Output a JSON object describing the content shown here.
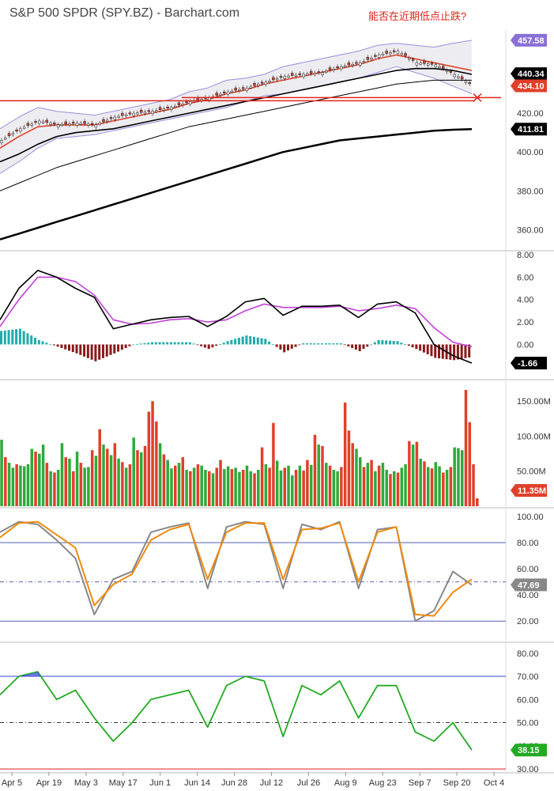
{
  "title": "S&P 500 SPDR (SPY.BZ) - Barchart.com",
  "annotation": "能否在近期低点止跌?",
  "colors": {
    "up": "#2eaa3a",
    "down": "#e0402b",
    "sma_black": "#000000",
    "sma_red": "#e0402b",
    "band": "#9b8de0",
    "macd_line": "#000000",
    "macd_signal": "#c040d8",
    "hist_up": "#22aaaa",
    "hist_down": "#8b1a1a",
    "stoch_k": "#888888",
    "stoch_d": "#f08a10",
    "rsi": "#22aa22",
    "rsi_over": "#3344dd",
    "hline_blue": "#5560b0",
    "support": "#e0241b"
  },
  "x_axis": {
    "labels": [
      "Apr 5",
      "Apr 19",
      "May 3",
      "May 17",
      "Jun 1",
      "Jun 14",
      "Jun 28",
      "Jul 12",
      "Jul 26",
      "Aug 9",
      "Aug 23",
      "Sep 7",
      "Sep 20",
      "Oct 4"
    ]
  },
  "chart_data": [
    {
      "type": "line",
      "name": "price",
      "y_ticks": [
        360.0,
        380.0,
        400.0,
        420.0
      ],
      "ylim": [
        350,
        462
      ],
      "price_badges": [
        {
          "label": "457.58",
          "value": 457.58,
          "color": "#8a6fd8"
        },
        {
          "label": "440.34",
          "value": 440.34,
          "color": "#000000"
        },
        {
          "label": "434.10",
          "value": 434.1,
          "color": "#e0402b"
        },
        {
          "label": "411.81",
          "value": 411.81,
          "color": "#000000"
        }
      ],
      "support_level": 426.4,
      "x_index": [
        0,
        5,
        10,
        15,
        20,
        25,
        30,
        35,
        40,
        45,
        50,
        55,
        60,
        65,
        70,
        75,
        80,
        85,
        90,
        95,
        100,
        105,
        110,
        115,
        120,
        125
      ],
      "series": [
        {
          "key": "close",
          "values": [
            406,
            412,
            416,
            414,
            415,
            414,
            418,
            420,
            421,
            423,
            426,
            428,
            431,
            433,
            436,
            439,
            440,
            441,
            444,
            446,
            450,
            452,
            446,
            445,
            440,
            434
          ]
        },
        {
          "key": "sma20",
          "values": [
            402,
            408,
            413,
            414,
            414,
            414,
            416,
            418,
            420,
            422,
            425,
            427,
            430,
            432,
            435,
            437,
            439,
            441,
            443,
            445,
            448,
            450,
            448,
            446,
            444,
            442
          ]
        },
        {
          "key": "sma50",
          "values": [
            395,
            399,
            404,
            408,
            410,
            411,
            412,
            414,
            416,
            418,
            420,
            422,
            424,
            426,
            428,
            430,
            432,
            434,
            436,
            438,
            440,
            442,
            443,
            443,
            442,
            440
          ]
        },
        {
          "key": "sma100",
          "values": [
            380,
            384,
            388,
            392,
            395,
            398,
            401,
            404,
            407,
            410,
            413,
            415,
            417,
            419,
            421,
            423,
            425,
            427,
            429,
            431,
            433,
            435,
            436,
            437,
            437,
            437
          ]
        },
        {
          "key": "sma200",
          "values": [
            355,
            358,
            361,
            364,
            367,
            370,
            373,
            376,
            379,
            382,
            385,
            388,
            391,
            394,
            397,
            400,
            402,
            404,
            406,
            407,
            408,
            409,
            410,
            411,
            411.5,
            411.81
          ]
        },
        {
          "key": "band_upper",
          "values": [
            412,
            418,
            423,
            421,
            420,
            419,
            421,
            423,
            425,
            427,
            431,
            433,
            437,
            438,
            440,
            444,
            446,
            448,
            450,
            452,
            455,
            456,
            455,
            454,
            456,
            457.58
          ]
        },
        {
          "key": "band_lower",
          "values": [
            389,
            395,
            402,
            407,
            408,
            409,
            411,
            413,
            415,
            417,
            419,
            421,
            423,
            426,
            429,
            430,
            432,
            434,
            436,
            438,
            441,
            444,
            441,
            438,
            434,
            430
          ]
        }
      ]
    },
    {
      "type": "line",
      "name": "macd",
      "y_ticks": [
        8.0,
        6.0,
        4.0,
        2.0,
        0.0
      ],
      "ylim": [
        -3,
        8
      ],
      "badge": {
        "label": "-1.66",
        "value": -1.66
      },
      "x_index": [
        0,
        5,
        10,
        15,
        20,
        25,
        30,
        35,
        40,
        45,
        50,
        55,
        60,
        65,
        70,
        75,
        80,
        85,
        90,
        95,
        100,
        105,
        110,
        115,
        120,
        125
      ],
      "series": [
        {
          "key": "macd",
          "values": [
            2.2,
            5.0,
            6.6,
            6.0,
            5.0,
            4.2,
            1.4,
            1.8,
            2.2,
            2.4,
            2.5,
            1.6,
            2.5,
            3.8,
            4.1,
            2.6,
            3.4,
            3.4,
            3.5,
            2.4,
            3.6,
            3.8,
            2.8,
            0.0,
            -1.0,
            -1.66
          ]
        },
        {
          "key": "signal",
          "values": [
            1.6,
            4.0,
            6.0,
            6.0,
            5.6,
            4.4,
            2.2,
            1.8,
            1.9,
            2.2,
            2.3,
            2.0,
            2.2,
            3.0,
            3.6,
            3.3,
            3.3,
            3.3,
            3.4,
            3.0,
            3.2,
            3.5,
            3.2,
            1.5,
            0.2,
            -0.2
          ]
        },
        {
          "key": "histogram",
          "values": [
            1.2,
            1.4,
            0.4,
            -0.2,
            -0.8,
            -1.5,
            -0.8,
            0.0,
            0.2,
            0.2,
            0.2,
            -0.4,
            0.3,
            0.8,
            0.5,
            -0.7,
            0.1,
            0.1,
            0.1,
            -0.6,
            0.4,
            0.3,
            -0.4,
            -1.2,
            -1.4,
            -1.1
          ]
        }
      ]
    },
    {
      "type": "bar",
      "name": "volume",
      "y_tick_labels": [
        "150.00M",
        "100.00M",
        "50.00M"
      ],
      "y_ticks": [
        150,
        100,
        50
      ],
      "ylim": [
        0,
        175
      ],
      "badge": {
        "label": "11.35M",
        "value": 11.35
      },
      "values": [
        95,
        70,
        62,
        55,
        60,
        58,
        57,
        60,
        82,
        78,
        75,
        88,
        62,
        50,
        48,
        52,
        90,
        70,
        68,
        50,
        78,
        62,
        55,
        56,
        80,
        72,
        110,
        88,
        82,
        73,
        90,
        68,
        63,
        55,
        60,
        98,
        80,
        77,
        86,
        135,
        150,
        121,
        90,
        74,
        66,
        54,
        58,
        62,
        70,
        52,
        50,
        55,
        60,
        58,
        52,
        50,
        47,
        55,
        66,
        53,
        57,
        53,
        55,
        49,
        52,
        58,
        50,
        47,
        52,
        84,
        60,
        55,
        119,
        65,
        51,
        55,
        58,
        44,
        52,
        58,
        51,
        66,
        59,
        102,
        88,
        86,
        62,
        58,
        52,
        50,
        56,
        148,
        108,
        90,
        82,
        70,
        56,
        62,
        66,
        50,
        58,
        62,
        52,
        46,
        50,
        48,
        55,
        60,
        93,
        88,
        92,
        68,
        64,
        56,
        54,
        63,
        57,
        48,
        52,
        56,
        84,
        83,
        80,
        166,
        120,
        60,
        11.35
      ],
      "up": [
        1,
        0,
        1,
        1,
        0,
        1,
        1,
        1,
        1,
        0,
        1,
        1,
        0,
        1,
        0,
        1,
        1,
        0,
        1,
        0,
        1,
        0,
        1,
        1,
        0,
        1,
        0,
        1,
        0,
        1,
        0,
        1,
        0,
        1,
        0,
        1,
        0,
        1,
        0,
        0,
        0,
        0,
        1,
        0,
        1,
        1,
        0,
        1,
        0,
        1,
        0,
        1,
        0,
        1,
        1,
        0,
        1,
        0,
        0,
        1,
        1,
        0,
        1,
        1,
        0,
        1,
        1,
        0,
        1,
        0,
        1,
        0,
        0,
        1,
        1,
        0,
        1,
        1,
        0,
        1,
        0,
        0,
        1,
        0,
        1,
        0,
        1,
        0,
        1,
        1,
        0,
        0,
        0,
        0,
        1,
        1,
        0,
        1,
        0,
        1,
        0,
        1,
        1,
        0,
        1,
        0,
        1,
        1,
        0,
        1,
        0,
        1,
        0,
        1,
        0,
        1,
        1,
        0,
        1,
        0,
        1,
        1,
        1,
        0,
        0,
        0,
        0
      ]
    },
    {
      "type": "line",
      "name": "stochastic",
      "y_ticks": [
        100.0,
        80.0,
        60.0,
        40.0,
        20.0
      ],
      "ylim": [
        5,
        103
      ],
      "levels": [
        80,
        20,
        50
      ],
      "badge": {
        "label": "47.69",
        "value": 47.69
      },
      "x_index": [
        0,
        5,
        10,
        15,
        20,
        25,
        30,
        35,
        40,
        45,
        50,
        55,
        60,
        65,
        70,
        75,
        80,
        85,
        90,
        95,
        100,
        105,
        110,
        115,
        120,
        125
      ],
      "series": [
        {
          "key": "k",
          "values": [
            88,
            96,
            94,
            82,
            68,
            25,
            52,
            58,
            88,
            92,
            95,
            45,
            92,
            96,
            94,
            45,
            94,
            90,
            96,
            45,
            90,
            92,
            20,
            28,
            58,
            47.69
          ]
        },
        {
          "key": "d",
          "values": [
            84,
            95,
            96,
            86,
            76,
            32,
            48,
            56,
            82,
            90,
            94,
            52,
            88,
            95,
            95,
            52,
            90,
            91,
            95,
            50,
            88,
            92,
            25,
            24,
            42,
            52
          ]
        }
      ]
    },
    {
      "type": "line",
      "name": "rsi",
      "y_ticks": [
        80.0,
        70.0,
        60.0,
        50.0,
        40.0,
        30.0
      ],
      "ylim": [
        29,
        83
      ],
      "levels": [
        70,
        50,
        30
      ],
      "badge": {
        "label": "38.15",
        "value": 38.15
      },
      "x_index": [
        0,
        5,
        10,
        15,
        20,
        25,
        30,
        35,
        40,
        45,
        50,
        55,
        60,
        65,
        70,
        75,
        80,
        85,
        90,
        95,
        100,
        105,
        110,
        115,
        120,
        125
      ],
      "series": [
        {
          "key": "rsi",
          "values": [
            62,
            70,
            72,
            60,
            64,
            52,
            42,
            50,
            60,
            62,
            64,
            48,
            66,
            70,
            68,
            44,
            66,
            62,
            68,
            52,
            66,
            66,
            46,
            42,
            50,
            38.15
          ]
        }
      ]
    }
  ]
}
